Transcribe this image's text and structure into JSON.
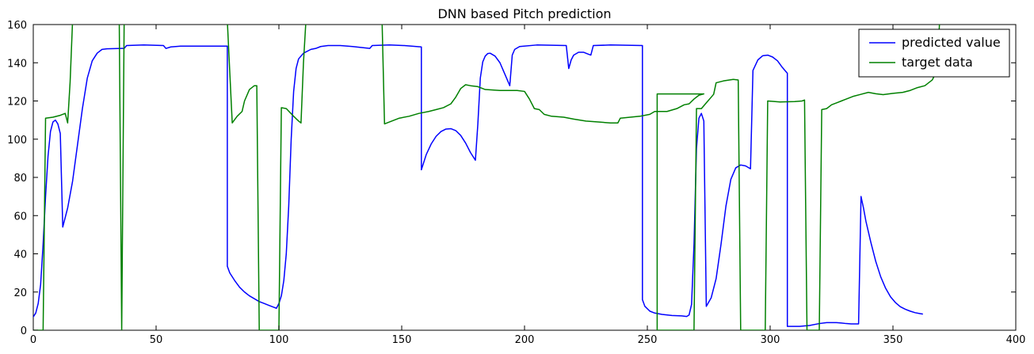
{
  "chart_data": {
    "type": "line",
    "title": "DNN based Pitch prediction",
    "xlabel": "",
    "ylabel": "",
    "xlim": [
      0,
      400
    ],
    "ylim": [
      0,
      160
    ],
    "xticks": [
      0,
      50,
      100,
      150,
      200,
      250,
      300,
      350,
      400
    ],
    "yticks": [
      0,
      20,
      40,
      60,
      80,
      100,
      120,
      140,
      160
    ],
    "grid": false,
    "legend_position": "top-right",
    "series": [
      {
        "name": "predicted value",
        "color": "#0000ff",
        "points": [
          [
            0,
            7
          ],
          [
            1,
            9
          ],
          [
            2,
            14
          ],
          [
            3,
            24
          ],
          [
            4,
            45
          ],
          [
            5,
            70
          ],
          [
            6,
            91
          ],
          [
            7,
            104
          ],
          [
            8,
            109
          ],
          [
            9,
            110
          ],
          [
            10,
            108
          ],
          [
            11,
            103
          ],
          [
            12,
            54
          ],
          [
            14,
            64
          ],
          [
            16,
            78
          ],
          [
            18,
            97
          ],
          [
            20,
            116
          ],
          [
            22,
            132
          ],
          [
            24,
            141
          ],
          [
            26,
            145
          ],
          [
            28,
            147
          ],
          [
            30,
            147.3
          ],
          [
            36,
            147.5
          ],
          [
            37,
            147.5
          ],
          [
            38,
            149
          ],
          [
            45,
            149.3
          ],
          [
            53,
            149
          ],
          [
            54,
            147.5
          ],
          [
            56,
            148.3
          ],
          [
            60,
            148.7
          ],
          [
            79,
            148.7
          ],
          [
            79,
            33.5
          ],
          [
            80,
            30
          ],
          [
            82,
            26
          ],
          [
            84,
            22.5
          ],
          [
            86,
            20
          ],
          [
            88,
            18
          ],
          [
            90,
            16.5
          ],
          [
            92,
            15
          ],
          [
            94,
            14
          ],
          [
            96,
            13
          ],
          [
            98,
            12
          ],
          [
            99,
            11.5
          ],
          [
            100,
            14
          ],
          [
            101,
            18
          ],
          [
            102,
            26
          ],
          [
            103,
            40
          ],
          [
            104,
            65
          ],
          [
            105,
            100
          ],
          [
            106,
            125
          ],
          [
            107,
            137
          ],
          [
            108,
            142
          ],
          [
            110,
            145
          ],
          [
            113,
            147
          ],
          [
            115,
            147.5
          ],
          [
            117,
            148.5
          ],
          [
            120,
            149
          ],
          [
            125,
            149
          ],
          [
            130,
            148.5
          ],
          [
            137,
            147.5
          ],
          [
            138,
            149
          ],
          [
            145,
            149.3
          ],
          [
            151,
            149
          ],
          [
            156,
            148.5
          ],
          [
            158,
            148.3
          ],
          [
            158,
            84
          ],
          [
            160,
            92
          ],
          [
            162,
            97.5
          ],
          [
            164,
            101.5
          ],
          [
            166,
            104
          ],
          [
            168,
            105.3
          ],
          [
            170,
            105.5
          ],
          [
            172,
            104.5
          ],
          [
            174,
            102
          ],
          [
            176,
            98
          ],
          [
            178,
            93
          ],
          [
            180,
            89
          ],
          [
            181,
            108
          ],
          [
            182,
            132
          ],
          [
            183,
            140.5
          ],
          [
            184,
            143.5
          ],
          [
            185,
            144.8
          ],
          [
            186,
            145
          ],
          [
            188,
            143.5
          ],
          [
            190,
            140
          ],
          [
            192,
            134
          ],
          [
            194,
            128
          ],
          [
            195,
            144
          ],
          [
            196,
            147
          ],
          [
            198,
            148.5
          ],
          [
            205,
            149.3
          ],
          [
            217,
            149
          ],
          [
            218,
            137
          ],
          [
            219,
            141.5
          ],
          [
            220,
            144
          ],
          [
            222,
            145.5
          ],
          [
            224,
            145.5
          ],
          [
            226,
            144.5
          ],
          [
            227,
            144
          ],
          [
            228,
            149
          ],
          [
            235,
            149.3
          ],
          [
            248,
            149
          ],
          [
            248,
            16
          ],
          [
            249,
            12.5
          ],
          [
            251,
            10
          ],
          [
            253,
            9
          ],
          [
            256,
            8.3
          ],
          [
            260,
            7.7
          ],
          [
            264,
            7.5
          ],
          [
            266,
            7.2
          ],
          [
            267,
            8
          ],
          [
            268,
            13.5
          ],
          [
            269,
            45
          ],
          [
            270,
            95
          ],
          [
            271,
            111
          ],
          [
            272,
            113.5
          ],
          [
            273,
            109.5
          ],
          [
            274,
            12.5
          ],
          [
            276,
            17
          ],
          [
            278,
            27
          ],
          [
            280,
            45
          ],
          [
            282,
            65
          ],
          [
            284,
            79
          ],
          [
            286,
            85
          ],
          [
            288,
            86.5
          ],
          [
            290,
            86
          ],
          [
            292,
            84.5
          ],
          [
            293,
            136
          ],
          [
            295,
            141.5
          ],
          [
            297,
            143.7
          ],
          [
            299,
            144
          ],
          [
            301,
            143
          ],
          [
            303,
            141
          ],
          [
            305,
            137.5
          ],
          [
            307,
            134.5
          ],
          [
            307,
            2
          ],
          [
            312,
            2
          ],
          [
            316,
            2.5
          ],
          [
            320,
            3.5
          ],
          [
            323,
            4
          ],
          [
            327,
            4
          ],
          [
            329,
            3.8
          ],
          [
            331,
            3.5
          ],
          [
            333,
            3.3
          ],
          [
            336,
            3.3
          ],
          [
            337,
            70
          ],
          [
            338,
            64
          ],
          [
            339,
            57
          ],
          [
            341,
            46
          ],
          [
            343,
            36
          ],
          [
            345,
            28
          ],
          [
            347,
            22
          ],
          [
            349,
            17.5
          ],
          [
            351,
            14.5
          ],
          [
            353,
            12.3
          ],
          [
            355,
            11
          ],
          [
            357,
            10
          ],
          [
            359,
            9.2
          ],
          [
            361,
            8.7
          ],
          [
            362,
            8.5
          ]
        ]
      },
      {
        "name": "target data",
        "color": "#008000",
        "points": [
          [
            0,
            0
          ],
          [
            4,
            0
          ],
          [
            5,
            111
          ],
          [
            8,
            111.5
          ],
          [
            11,
            112.5
          ],
          [
            13,
            113.5
          ],
          [
            14,
            108.5
          ],
          [
            15,
            130
          ],
          [
            16,
            162
          ],
          [
            17,
            162
          ],
          [
            35,
            162
          ],
          [
            36,
            0
          ],
          [
            37,
            162
          ],
          [
            79,
            162
          ],
          [
            80,
            135
          ],
          [
            81,
            108.5
          ],
          [
            83,
            112
          ],
          [
            85,
            114.5
          ],
          [
            86,
            120
          ],
          [
            88,
            126
          ],
          [
            90,
            128
          ],
          [
            91,
            128
          ],
          [
            92,
            0
          ],
          [
            100,
            0
          ],
          [
            101,
            116.5
          ],
          [
            103,
            116
          ],
          [
            106,
            112
          ],
          [
            108,
            109.5
          ],
          [
            109,
            108.5
          ],
          [
            110,
            140
          ],
          [
            111,
            162
          ],
          [
            142,
            162
          ],
          [
            143,
            108
          ],
          [
            146,
            109.5
          ],
          [
            149,
            111
          ],
          [
            153,
            112
          ],
          [
            157,
            113.5
          ],
          [
            161,
            114.5
          ],
          [
            164,
            115.5
          ],
          [
            167,
            116.5
          ],
          [
            170,
            118.5
          ],
          [
            172,
            122
          ],
          [
            174,
            126.5
          ],
          [
            176,
            128.5
          ],
          [
            178,
            128
          ],
          [
            181,
            127.5
          ],
          [
            184,
            126
          ],
          [
            190,
            125.5
          ],
          [
            197,
            125.5
          ],
          [
            200,
            125
          ],
          [
            202,
            121
          ],
          [
            204,
            116
          ],
          [
            206,
            115.5
          ],
          [
            208,
            113
          ],
          [
            211,
            112
          ],
          [
            216,
            111.5
          ],
          [
            220,
            110.5
          ],
          [
            225,
            109.5
          ],
          [
            230,
            109
          ],
          [
            235,
            108.5
          ],
          [
            238,
            108.5
          ],
          [
            239,
            111
          ],
          [
            243,
            111.5
          ],
          [
            247,
            112
          ],
          [
            251,
            113
          ],
          [
            253,
            114.5
          ],
          [
            258,
            114.5
          ],
          [
            262,
            116
          ],
          [
            265,
            118
          ],
          [
            267,
            118.5
          ],
          [
            269,
            121
          ],
          [
            271,
            123
          ],
          [
            273,
            123.7
          ],
          [
            254,
            123.7
          ],
          [
            254,
            0
          ],
          [
            269,
            0
          ],
          [
            270,
            116
          ],
          [
            272,
            116
          ],
          [
            274,
            119
          ],
          [
            276,
            122
          ],
          [
            277,
            123.5
          ],
          [
            278,
            129.5
          ],
          [
            281,
            130.5
          ],
          [
            285,
            131.3
          ],
          [
            287,
            131
          ],
          [
            288,
            0
          ],
          [
            298,
            0
          ],
          [
            299,
            120
          ],
          [
            304,
            119.5
          ],
          [
            310,
            119.7
          ],
          [
            313,
            120
          ],
          [
            314,
            120.5
          ],
          [
            315,
            0
          ],
          [
            320,
            0
          ],
          [
            321,
            115.5
          ],
          [
            323,
            116
          ],
          [
            325,
            118
          ],
          [
            327,
            119
          ],
          [
            329,
            120
          ],
          [
            331,
            121
          ],
          [
            334,
            122.5
          ],
          [
            337,
            123.5
          ],
          [
            340,
            124.5
          ],
          [
            343,
            123.8
          ],
          [
            346,
            123.3
          ],
          [
            350,
            124
          ],
          [
            354,
            124.5
          ],
          [
            357,
            125.5
          ],
          [
            360,
            127
          ],
          [
            363,
            128
          ],
          [
            366,
            131
          ],
          [
            368,
            136
          ],
          [
            369,
            162
          ]
        ]
      }
    ]
  }
}
